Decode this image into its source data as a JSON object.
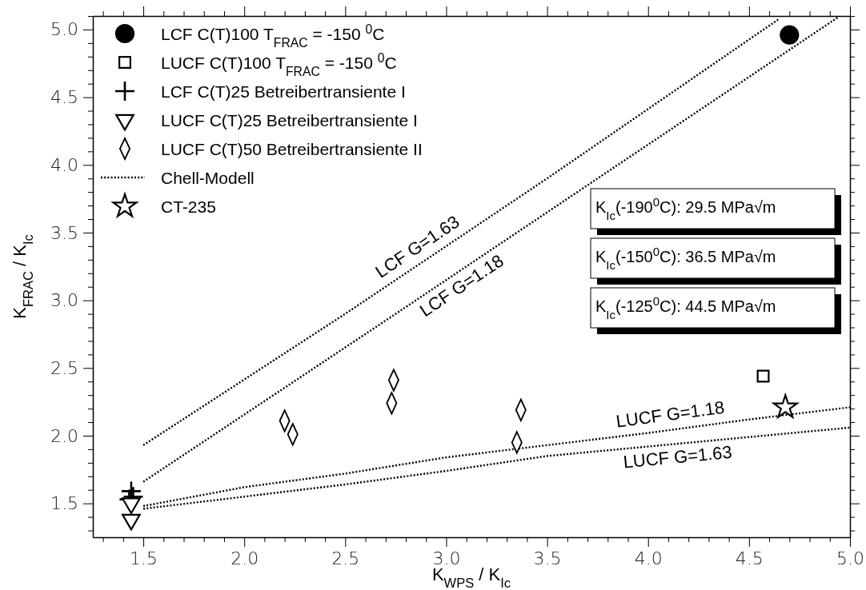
{
  "chart_data": {
    "type": "scatter",
    "xlabel": "K$_{WPS}$ / K$_{Ic}$",
    "ylabel": "K$_{FRAC}$ / K$_{Ic}$",
    "xlim": [
      1.25,
      5.0
    ],
    "ylim": [
      1.25,
      5.1
    ],
    "xticks": [
      {
        "value": 1.3,
        "label": null
      },
      {
        "value": 1.4,
        "label": null
      },
      1.5,
      {
        "value": 1.6,
        "label": null
      },
      {
        "value": 1.7,
        "label": null
      },
      {
        "value": 1.8,
        "label": null
      },
      {
        "value": 1.9,
        "label": null
      },
      {
        "value": 2.0,
        "label": "2.0"
      },
      {
        "value": 2.1,
        "label": null
      },
      {
        "value": 2.2,
        "label": null
      },
      {
        "value": 2.3,
        "label": null
      },
      {
        "value": 2.4,
        "label": null
      },
      2.5,
      {
        "value": 2.6,
        "label": null
      },
      {
        "value": 2.7,
        "label": null
      },
      {
        "value": 2.8,
        "label": null
      },
      {
        "value": 2.9,
        "label": null
      },
      {
        "value": 3.0,
        "label": "3.0"
      },
      {
        "value": 3.1,
        "label": null
      },
      {
        "value": 3.2,
        "label": null
      },
      {
        "value": 3.3,
        "label": null
      },
      {
        "value": 3.4,
        "label": null
      },
      3.5,
      {
        "value": 3.6,
        "label": null
      },
      {
        "value": 3.7,
        "label": null
      },
      {
        "value": 3.8,
        "label": null
      },
      {
        "value": 3.9,
        "label": null
      },
      {
        "value": 4.0,
        "label": "4.0"
      },
      {
        "value": 4.1,
        "label": null
      },
      {
        "value": 4.2,
        "label": null
      },
      {
        "value": 4.3,
        "label": null
      },
      {
        "value": 4.4,
        "label": null
      },
      4.5,
      {
        "value": 4.6,
        "label": null
      },
      {
        "value": 4.7,
        "label": null
      },
      {
        "value": 4.8,
        "label": null
      },
      {
        "value": 4.9,
        "label": null
      },
      {
        "value": 5.0,
        "label": "5.0"
      }
    ],
    "yticks": [
      {
        "value": 1.3,
        "label": null
      },
      {
        "value": 1.4,
        "label": null
      },
      1.5,
      {
        "value": 1.6,
        "label": null
      },
      {
        "value": 1.7,
        "label": null
      },
      {
        "value": 1.8,
        "label": null
      },
      {
        "value": 1.9,
        "label": null
      },
      {
        "value": 2.0,
        "label": "2.0"
      },
      {
        "value": 2.1,
        "label": null
      },
      {
        "value": 2.2,
        "label": null
      },
      {
        "value": 2.3,
        "label": null
      },
      {
        "value": 2.4,
        "label": null
      },
      2.5,
      {
        "value": 2.6,
        "label": null
      },
      {
        "value": 2.7,
        "label": null
      },
      {
        "value": 2.8,
        "label": null
      },
      {
        "value": 2.9,
        "label": null
      },
      {
        "value": 3.0,
        "label": "3.0"
      },
      {
        "value": 3.1,
        "label": null
      },
      {
        "value": 3.2,
        "label": null
      },
      {
        "value": 3.3,
        "label": null
      },
      {
        "value": 3.4,
        "label": null
      },
      3.5,
      {
        "value": 3.6,
        "label": null
      },
      {
        "value": 3.7,
        "label": null
      },
      {
        "value": 3.8,
        "label": null
      },
      {
        "value": 3.9,
        "label": null
      },
      {
        "value": 4.0,
        "label": "4.0"
      },
      {
        "value": 4.1,
        "label": null
      },
      {
        "value": 4.2,
        "label": null
      },
      {
        "value": 4.3,
        "label": null
      },
      {
        "value": 4.4,
        "label": null
      },
      4.5,
      {
        "value": 4.6,
        "label": null
      },
      {
        "value": 4.7,
        "label": null
      },
      {
        "value": 4.8,
        "label": null
      },
      {
        "value": 4.9,
        "label": null
      },
      {
        "value": 5.0,
        "label": "5.0"
      },
      {
        "value": 5.1,
        "label": null
      }
    ],
    "grid": false,
    "legend": "top left",
    "series": [
      {
        "name": "LCF C(T)100 T$_{FRAC}$ = -150 $^{0}$C",
        "color": "#000000",
        "marker": "circle",
        "x": [
          4.7
        ],
        "values": [
          4.96
        ]
      },
      {
        "name": "LUCF C(T)100 T$_{FRAC}$ = -150 $^{0}$C",
        "color": "#000000",
        "marker": "square",
        "x": [
          4.57
        ],
        "values": [
          2.44
        ]
      },
      {
        "name": "LCF C(T)25 Betreibertransiente I",
        "color": "#000000",
        "marker": "cross",
        "x": [
          1.44,
          1.45,
          1.43
        ],
        "values": [
          1.59,
          1.55,
          1.53
        ]
      },
      {
        "name": "LUCF C(T)25 Betreibertransiente I",
        "color": "#000000",
        "marker": "triangle",
        "x": [
          1.44,
          1.44
        ],
        "values": [
          1.5,
          1.38
        ]
      },
      {
        "name": "LUCF C(T)50 Betreibertransiente II",
        "color": "#000000",
        "marker": "diamond",
        "x": [
          2.2,
          2.24,
          2.74,
          2.73,
          3.37,
          3.35
        ],
        "values": [
          2.11,
          2.01,
          2.41,
          2.24,
          2.19,
          1.95
        ]
      },
      {
        "name": "Chell-Modell",
        "type": "line",
        "line_style": "dotted",
        "marker": "none",
        "color": "#000000",
        "x": [
          1.5,
          2.5,
          3.5,
          4.65
        ],
        "values": [
          1.93,
          2.9,
          3.9,
          5.08
        ]
      },
      {
        "type": "line",
        "line_style": "dotted",
        "marker": "none",
        "color": "#000000",
        "x": [
          1.5,
          2.75,
          3.9,
          4.94
        ],
        "values": [
          1.66,
          2.9,
          4.05,
          5.09
        ]
      },
      {
        "type": "line",
        "line_style": "dotted",
        "marker": "none",
        "color": "#000000",
        "x": [
          1.5,
          2.0,
          2.5,
          3.0,
          3.5,
          4.0,
          4.5,
          5.0
        ],
        "values": [
          1.48,
          1.62,
          1.72,
          1.84,
          1.93,
          2.02,
          2.12,
          2.21
        ]
      },
      {
        "type": "line",
        "line_style": "dotted",
        "marker": "none",
        "color": "#000000",
        "x": [
          1.5,
          2.0,
          2.5,
          3.0,
          3.5,
          4.0,
          4.5,
          5.0
        ],
        "values": [
          1.46,
          1.55,
          1.64,
          1.74,
          1.85,
          1.92,
          1.99,
          2.06
        ]
      },
      {
        "name": "CT-235",
        "color": "#000000",
        "marker": "star",
        "x": [
          4.68
        ],
        "values": [
          2.21
        ]
      }
    ],
    "annotations": [
      {
        "text": "LCF G=1.63",
        "x": 2.9,
        "y": 3.3
      },
      {
        "text": "LCF G=1.18",
        "x": 3.04,
        "y": 3.19
      },
      {
        "text": "LUCF G=1.18",
        "x": 4.12,
        "y": 2.044
      },
      {
        "text": "LUCF G=1.63",
        "x": 4.14,
        "y": 1.94
      },
      "K$_{Ic}$(-190$^{0}$C): 29.5 MPa√m",
      "K$_{Ic}$(-150$^{0}$C): 36.5 MPa√m",
      "K$_{Ic}$(-125$^{0}$C): 44.5 MPa√m"
    ]
  }
}
